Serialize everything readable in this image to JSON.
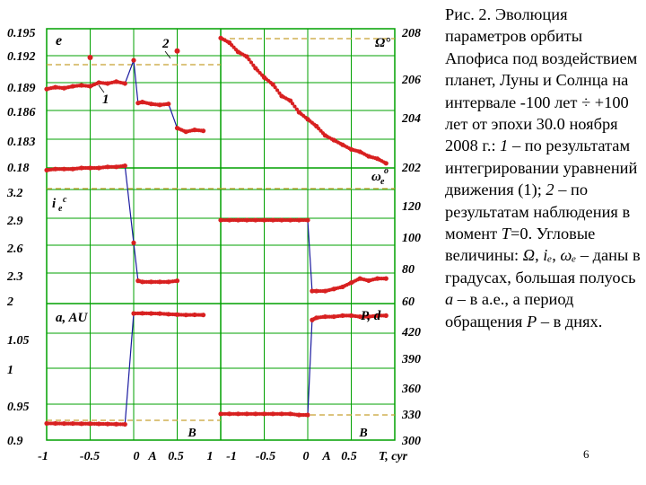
{
  "figure": {
    "panel_labels": {
      "top_left": "e",
      "top_right": "Ω°",
      "mid_left": "i",
      "mid_left_super": "e",
      "mid_left_degree": "c",
      "mid_right": "ω",
      "mid_right_sub": "e",
      "mid_right_super": "o",
      "bottom_left": "a, AU",
      "bottom_right": "P, d"
    },
    "curve_labels": {
      "one": "1",
      "two": "2"
    },
    "marker_labels": {
      "A_left": "A",
      "B_left": "B",
      "A_right": "A",
      "B_right": "B"
    },
    "left_axis_ticks": [
      "0.195",
      "0.192",
      "0.189",
      "0.186",
      "0.183",
      "0.18",
      "3.2",
      "2.9",
      "2.6",
      "2.3",
      "2",
      "1.05",
      "1",
      "0.95",
      "0.9"
    ],
    "right_axis_ticks": [
      "208",
      "206",
      "204",
      "202",
      "120",
      "100",
      "80",
      "60",
      "420",
      "390",
      "360",
      "330",
      "300"
    ],
    "x_ticks": [
      "-1",
      "-0.5",
      "0",
      "0.5",
      "1",
      "-1",
      "-0.5",
      "0",
      "0.5"
    ],
    "x_label": "T, cyr",
    "colors": {
      "grid": "#00a000",
      "reference": "#c8a030",
      "series_1": "#1a1aa0",
      "series_2": "#d82020"
    }
  },
  "chart_data": [
    {
      "type": "scatter",
      "panel": "e (left) and Ω° (right), top row",
      "left_ylabel": "e",
      "right_ylabel": "Ω°",
      "xlim": [
        -1,
        1
      ],
      "ylim_left": [
        0.18,
        0.195
      ],
      "ylim_right": [
        202,
        208
      ],
      "series": [
        {
          "name": "1",
          "x": [
            -1.0,
            -0.9,
            -0.8,
            -0.7,
            -0.6,
            -0.5,
            -0.4,
            -0.3,
            -0.2,
            -0.1,
            0.0,
            0.05,
            0.1,
            0.2,
            0.3,
            0.4,
            0.5,
            0.6,
            0.7,
            0.8
          ],
          "y": [
            0.1885,
            0.1887,
            0.1886,
            0.1888,
            0.1889,
            0.1888,
            0.1892,
            0.1891,
            0.1893,
            0.1891,
            0.1916,
            0.187,
            0.1871,
            0.1869,
            0.1868,
            0.1869,
            0.1843,
            0.1839,
            0.1841,
            0.184
          ]
        },
        {
          "name": "2",
          "x": [
            -0.5,
            0.5
          ],
          "y": [
            0.1919,
            0.1926
          ]
        }
      ],
      "right_series_x": [
        -1.0,
        -0.9,
        -0.8,
        -0.7,
        -0.6,
        -0.5,
        -0.4,
        -0.3,
        -0.2,
        -0.1,
        0.0,
        0.1,
        0.2,
        0.3,
        0.4,
        0.5,
        0.6,
        0.7,
        0.8,
        0.9
      ],
      "right_series_y": [
        207.6,
        207.4,
        207.0,
        206.8,
        206.3,
        205.9,
        205.6,
        205.1,
        204.9,
        204.4,
        204.1,
        203.8,
        203.4,
        203.2,
        203.0,
        202.8,
        202.7,
        202.5,
        202.4,
        202.2
      ]
    },
    {
      "type": "scatter",
      "panel": "i_e (left) and ω_e (right), middle row",
      "xlim": [
        -1,
        1
      ],
      "ylim_left": [
        2.0,
        3.2
      ],
      "ylim_right": [
        60,
        120
      ],
      "left_x": [
        -1.0,
        -0.9,
        -0.8,
        -0.7,
        -0.6,
        -0.5,
        -0.4,
        -0.3,
        -0.2,
        -0.1,
        0.0,
        0.05,
        0.1,
        0.2,
        0.3,
        0.4,
        0.5
      ],
      "left_y": [
        3.23,
        3.24,
        3.24,
        3.24,
        3.25,
        3.25,
        3.25,
        3.26,
        3.26,
        3.27,
        2.56,
        2.21,
        2.2,
        2.2,
        2.2,
        2.2,
        2.21
      ],
      "right_x": [
        -1.0,
        -0.9,
        -0.8,
        -0.7,
        -0.6,
        -0.5,
        -0.4,
        -0.3,
        -0.2,
        -0.1,
        0.0,
        0.05,
        0.1,
        0.2,
        0.3,
        0.4,
        0.5,
        0.6,
        0.7,
        0.8,
        0.9
      ],
      "right_y": [
        100,
        100,
        100,
        100,
        100,
        100,
        100,
        100,
        100,
        100,
        100,
        66,
        66,
        66,
        67,
        68,
        70,
        72,
        71,
        72,
        72
      ]
    },
    {
      "type": "scatter",
      "panel": "a, AU (left) and P, d (right), bottom row",
      "xlim": [
        -1,
        1
      ],
      "ylim_left": [
        0.9,
        1.05
      ],
      "ylim_right": [
        300,
        420
      ],
      "left_x": [
        -1.0,
        -0.9,
        -0.8,
        -0.7,
        -0.6,
        -0.5,
        -0.4,
        -0.3,
        -0.2,
        -0.1,
        0.0,
        0.1,
        0.2,
        0.3,
        0.4,
        0.5,
        0.6,
        0.7,
        0.8
      ],
      "left_y": [
        0.922,
        0.922,
        0.9218,
        0.9218,
        0.9216,
        0.9216,
        0.9214,
        0.9212,
        0.921,
        0.9208,
        1.067,
        1.0672,
        1.067,
        1.0668,
        1.066,
        1.0655,
        1.065,
        1.0652,
        1.065
      ],
      "right_x": [
        -1.0,
        -0.9,
        -0.8,
        -0.7,
        -0.6,
        -0.5,
        -0.4,
        -0.3,
        -0.2,
        -0.1,
        0.0,
        0.05,
        0.1,
        0.2,
        0.3,
        0.4,
        0.5,
        0.6,
        0.7,
        0.8,
        0.9
      ],
      "right_y": [
        324,
        324,
        324,
        324,
        324,
        324,
        324,
        324,
        324,
        323,
        323,
        410,
        412,
        413,
        413,
        414,
        414,
        413,
        413,
        414,
        414
      ]
    }
  ],
  "caption": {
    "prefix": "Рис. 2. Эволюция параметров орбиты Апофиса под воздействием планет, Луны и Солнца на интервале -100 лет ÷ +100 лет от эпохи 30.0 ноября 2008 г.: ",
    "item1_num": "1",
    "item1_text": " – по результатам интегрировании уравнений движения (1); ",
    "item2_num": "2",
    "item2_text": " – по результатам наблюдения в момент ",
    "T_sym": "T",
    "T_text": "=0. Угловые величины: ",
    "Omega": "Ω",
    "comma1": ", ",
    "i_e": "iₑ",
    "comma2": ", ",
    "omega_e": "ωₑ",
    "dash_text": " – даны в градусах, большая полуось ",
    "a_sym": "a",
    "a_text": " – в а.е., а период обращения ",
    "P_sym": "P",
    "P_text": " – в днях."
  },
  "page_number": "6"
}
